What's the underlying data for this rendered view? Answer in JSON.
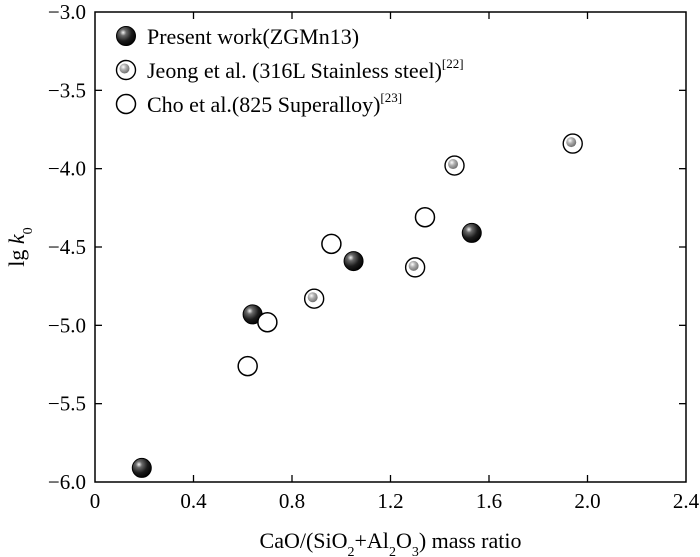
{
  "chart_data": {
    "type": "scatter",
    "title": "",
    "xlabel": {
      "parts": [
        {
          "t": "CaO/(SiO"
        },
        {
          "t": "2",
          "sub": true
        },
        {
          "t": "+Al"
        },
        {
          "t": "2",
          "sub": true
        },
        {
          "t": "O"
        },
        {
          "t": "3",
          "sub": true
        },
        {
          "t": ") mass ratio"
        }
      ]
    },
    "ylabel": {
      "parts": [
        {
          "t": "lg "
        },
        {
          "t": "k",
          "italic": true
        },
        {
          "t": "0",
          "sub": true
        }
      ]
    },
    "xlim": [
      0,
      2.4
    ],
    "ylim": [
      -6.0,
      -3.0
    ],
    "xticks": [
      "0",
      "0.4",
      "0.8",
      "1.2",
      "1.6",
      "2.0",
      "2.4"
    ],
    "yticks": [
      "−3.0",
      "−3.5",
      "−4.0",
      "−4.5",
      "−5.0",
      "−5.5",
      "−6.0"
    ],
    "grid": false,
    "legend_position": "top-left",
    "series": [
      {
        "name": "Present work(ZGMn13)",
        "ref": "",
        "marker": "black-sphere",
        "points": [
          [
            0.19,
            -5.91
          ],
          [
            0.64,
            -4.93
          ],
          [
            1.05,
            -4.59
          ],
          [
            1.53,
            -4.41
          ]
        ]
      },
      {
        "name": "Jeong et al. (316L Stainless steel)",
        "ref": "[22]",
        "marker": "grey-dot-circle",
        "points": [
          [
            0.89,
            -4.83
          ],
          [
            1.3,
            -4.63
          ],
          [
            1.46,
            -3.98
          ],
          [
            1.94,
            -3.84
          ]
        ]
      },
      {
        "name": "Cho et al.(825 Superalloy)",
        "ref": "[23]",
        "marker": "open-circle",
        "points": [
          [
            0.62,
            -5.26
          ],
          [
            0.7,
            -4.98
          ],
          [
            0.96,
            -4.48
          ],
          [
            1.34,
            -4.31
          ]
        ]
      }
    ]
  }
}
